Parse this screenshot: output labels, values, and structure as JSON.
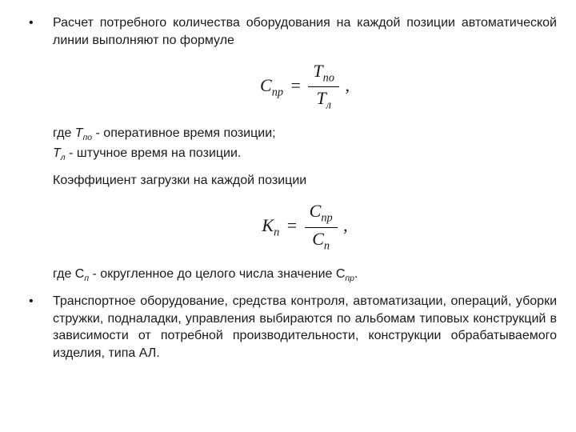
{
  "bullets": {
    "b1": {
      "para": "Расчет потребного количества оборудования на каждой позиции автоматической линии выполняют по формуле"
    },
    "b2": {
      "para": "Транспортное оборудование, средства контроля, автоматизации, операций, уборки стружки, подналадки, управления выбираются по альбомам типовых конструкций в зависимости от потребной производительности, конструкции обрабатываемого изделия, типа АЛ."
    }
  },
  "formula1": {
    "lhs_base": "С",
    "lhs_sub": "пр",
    "num_base": "Т",
    "num_sub": "по",
    "den_base": "Т",
    "den_sub": "л",
    "tail": ","
  },
  "where1": {
    "line1_prefix": "где ",
    "line1_sym_base": "Т",
    "line1_sym_sub": "по",
    "line1_rest": " - оперативное время позиции;",
    "line2_sym_base": "Т",
    "line2_sym_sub": "л",
    "line2_rest": " - штучное время на позиции."
  },
  "coeff_line": "Коэффициент загрузки на каждой позиции",
  "formula2": {
    "lhs_base": "K",
    "lhs_sub": "п",
    "num_base": "С",
    "num_sub": "пр",
    "den_base": "С",
    "den_sub": "п",
    "tail": ","
  },
  "where2": {
    "prefix": "где С",
    "sub1": "п",
    "mid": " - округленное до целого числа значение С",
    "sub2": "пр",
    "end": "."
  }
}
